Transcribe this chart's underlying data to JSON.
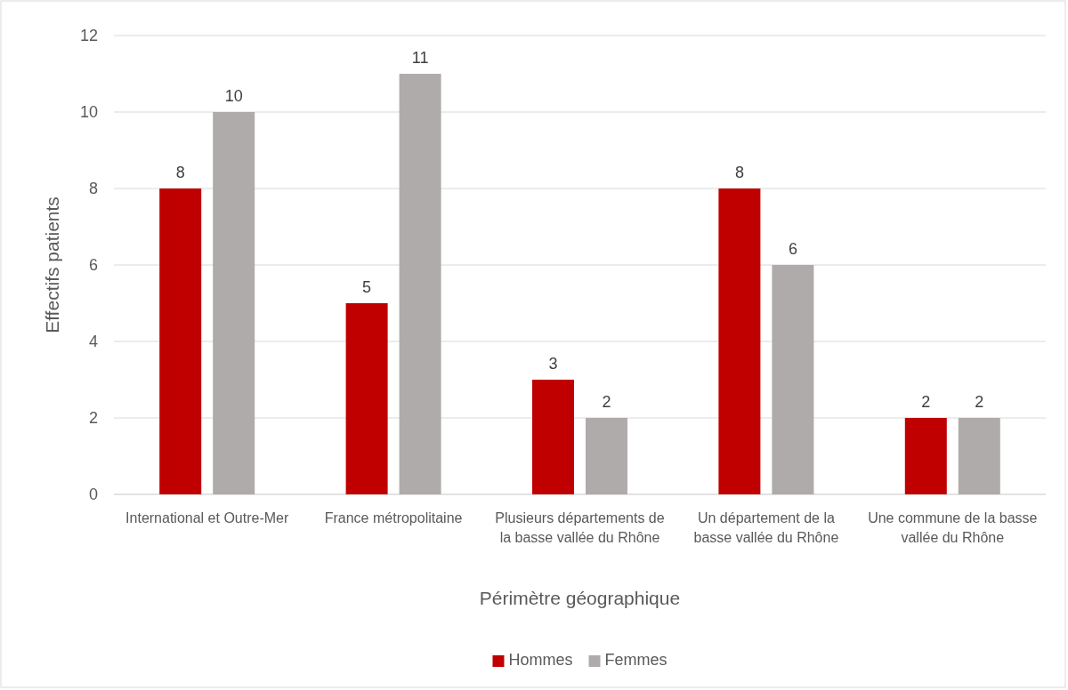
{
  "chart_data": {
    "type": "bar",
    "xlabel": "Périmètre géographique",
    "ylabel": "Effectifs patients",
    "categories": [
      "International et Outre-Mer",
      "France métropolitaine",
      "Plusieurs départements de la basse vallée du Rhône",
      "Un département de la basse vallée du Rhône",
      "Une commune de la basse vallée du Rhône"
    ],
    "series": [
      {
        "name": "Hommes",
        "color": "#c00000",
        "values": [
          8,
          5,
          3,
          8,
          2
        ]
      },
      {
        "name": "Femmes",
        "color": "#afabab",
        "values": [
          10,
          11,
          2,
          6,
          2
        ]
      }
    ],
    "ylim": [
      0,
      12
    ],
    "yticks": [
      0,
      2,
      4,
      6,
      8,
      10,
      12
    ],
    "grid": "y",
    "legend": "bottom",
    "data_labels": true
  }
}
